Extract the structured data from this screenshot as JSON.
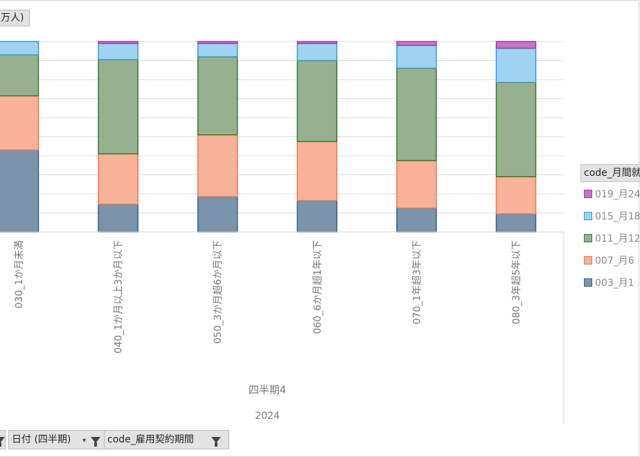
{
  "y_field_label": "万人)",
  "legend": {
    "title": "code_月間就",
    "items": [
      {
        "label": "019_月24",
        "color": "#c774c2",
        "border": "#9b3d97"
      },
      {
        "label": "015_月18",
        "color": "#9fd3f1",
        "border": "#2f9bd6"
      },
      {
        "label": "011_月12",
        "color": "#97b08f",
        "border": "#2f7a2f"
      },
      {
        "label": "007_月6",
        "color": "#f7b299",
        "border": "#e9764a"
      },
      {
        "label": "003_月1",
        "color": "#7c94ab",
        "border": "#2d6188"
      }
    ]
  },
  "filters": {
    "date_quarter": "日付 (四半期)",
    "contract_period": "code_雇用契約期間"
  },
  "chart_data": {
    "type": "bar",
    "stacked": true,
    "categories": [
      "030_1か月未満",
      "040_1か月以上3か月以下",
      "050_3か月超6か月以下",
      "060_6か月超1年以下",
      "070_1年超3年以下",
      "080_3年超5年以下"
    ],
    "group_labels": [
      "四半期4",
      "2024"
    ],
    "series": [
      {
        "name": "003_月1",
        "values": [
          43,
          14.5,
          18.5,
          16.5,
          12.5,
          9.5
        ]
      },
      {
        "name": "007_月6",
        "values": [
          28.5,
          26.5,
          32.5,
          31,
          25,
          19.5
        ]
      },
      {
        "name": "011_月12",
        "values": [
          21.5,
          49.5,
          41,
          42.5,
          48.5,
          49.5
        ]
      },
      {
        "name": "015_月18",
        "values": [
          7,
          8.5,
          7,
          9,
          12,
          18
        ]
      },
      {
        "name": "019_月24",
        "values": [
          0,
          1,
          1,
          1,
          2,
          3.5
        ]
      }
    ],
    "ylim": [
      0,
      100
    ],
    "grid": true,
    "legend_position": "right"
  }
}
